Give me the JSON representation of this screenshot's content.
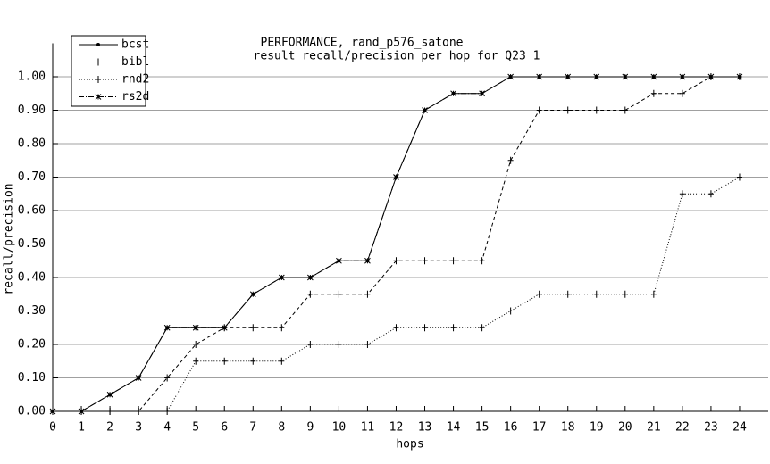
{
  "chart_data": {
    "type": "line",
    "title": "PERFORMANCE, rand_p576_satone",
    "subtitle": "result recall/precision per hop for Q23_1",
    "x_label": "hops",
    "y_label": "recall/precision",
    "x": [
      0,
      1,
      2,
      3,
      4,
      5,
      6,
      7,
      8,
      9,
      10,
      11,
      12,
      13,
      14,
      15,
      16,
      17,
      18,
      19,
      20,
      21,
      22,
      23,
      24
    ],
    "xlim": [
      0,
      25
    ],
    "xticks": [
      0,
      1,
      2,
      3,
      4,
      5,
      6,
      7,
      8,
      9,
      10,
      11,
      12,
      13,
      14,
      15,
      16,
      17,
      18,
      19,
      20,
      21,
      22,
      23,
      24
    ],
    "ylim": [
      0,
      1.1
    ],
    "yticks": [
      {
        "value": 0,
        "label": "0.00"
      },
      {
        "value": 0.1,
        "label": "0.10"
      },
      {
        "value": 0.2,
        "label": "0.20"
      },
      {
        "value": 0.3,
        "label": "0.30"
      },
      {
        "value": 0.4,
        "label": "0.40"
      },
      {
        "value": 0.5,
        "label": "0.50"
      },
      {
        "value": 0.6,
        "label": "0.60"
      },
      {
        "value": 0.7,
        "label": "0.70"
      },
      {
        "value": 0.8,
        "label": "0.80"
      },
      {
        "value": 0.9,
        "label": "0.90"
      },
      {
        "value": 1,
        "label": "1.00"
      }
    ],
    "grid": true,
    "legend": "top-left",
    "series": [
      {
        "name": "bcst",
        "color": "#000000",
        "dash": "none",
        "marker": "dot",
        "values": [
          0,
          0,
          0.05,
          0.1,
          0.25,
          0.25,
          0.25,
          0.35,
          0.4,
          0.4,
          0.45,
          0.45,
          0.7,
          0.9,
          0.95,
          0.95,
          1,
          1,
          1,
          1,
          1,
          1,
          1,
          1,
          1
        ]
      },
      {
        "name": "bibl",
        "color": "#000000",
        "dash": "4,3",
        "marker": "plus",
        "values": [
          0,
          0,
          0,
          0,
          0.1,
          0.2,
          0.25,
          0.25,
          0.25,
          0.35,
          0.35,
          0.35,
          0.45,
          0.45,
          0.45,
          0.45,
          0.75,
          0.9,
          0.9,
          0.9,
          0.9,
          0.95,
          0.95,
          1,
          1
        ]
      },
      {
        "name": "rnd2",
        "color": "#000000",
        "dash": "1,2",
        "marker": "plus",
        "values": [
          0,
          0,
          0,
          0,
          0,
          0.15,
          0.15,
          0.15,
          0.15,
          0.2,
          0.2,
          0.2,
          0.25,
          0.25,
          0.25,
          0.25,
          0.3,
          0.35,
          0.35,
          0.35,
          0.35,
          0.35,
          0.65,
          0.65,
          0.7
        ]
      },
      {
        "name": "rs2d",
        "color": "#000000",
        "dash": "6,2,1,2",
        "marker": "x",
        "values": [
          0,
          0,
          0.05,
          0.1,
          0.25,
          0.25,
          0.25,
          0.35,
          0.4,
          0.4,
          0.45,
          0.45,
          0.7,
          0.9,
          0.95,
          0.95,
          1,
          1,
          1,
          1,
          1,
          1,
          1,
          1,
          1
        ]
      }
    ]
  }
}
